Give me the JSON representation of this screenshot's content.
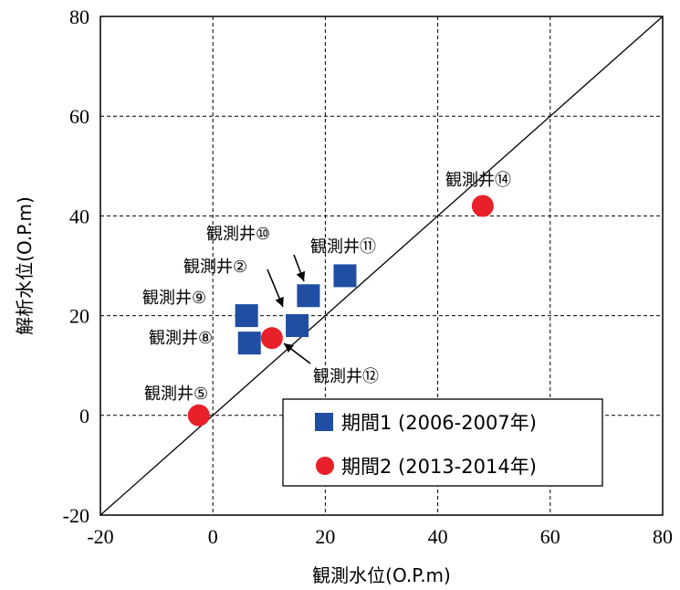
{
  "chart_data": {
    "type": "scatter",
    "xlabel": "観測水位(O.P.m)",
    "ylabel": "解析水位(O.P.m)",
    "xlim": [
      -20,
      80
    ],
    "ylim": [
      -20,
      80
    ],
    "xticks": [
      "-20",
      "0",
      "20",
      "40",
      "60",
      "80"
    ],
    "yticks": [
      "-20",
      "0",
      "20",
      "40",
      "60",
      "80"
    ],
    "grid": true,
    "reference_line": "y = x",
    "legend_placement": "bottom-right",
    "colors": {
      "series1": "#1f4ea3",
      "series2": "#e8202a"
    },
    "series": [
      {
        "name": "期間1 (2006-2007年)",
        "marker": "square",
        "points": [
          {
            "x": 6,
            "y": 20
          },
          {
            "x": 6.5,
            "y": 14.5
          },
          {
            "x": 15,
            "y": 18
          },
          {
            "x": 17,
            "y": 24
          },
          {
            "x": 23.5,
            "y": 28
          }
        ]
      },
      {
        "name": "期間2 (2013-2014年)",
        "marker": "circle",
        "points": [
          {
            "x": -2.5,
            "y": 0
          },
          {
            "x": 10.5,
            "y": 15.5
          },
          {
            "x": 48,
            "y": 42
          }
        ]
      }
    ],
    "annotations": [
      {
        "text": "観測井⑤",
        "x": -2.5,
        "y": 0
      },
      {
        "text": "観測井⑧",
        "x": 6.5,
        "y": 14.5
      },
      {
        "text": "観測井⑨",
        "x": 6,
        "y": 20
      },
      {
        "text": "観測井②",
        "x": 15,
        "y": 18
      },
      {
        "text": "観測井⑩",
        "x": 17,
        "y": 24
      },
      {
        "text": "観測井⑪",
        "x": 23.5,
        "y": 28
      },
      {
        "text": "観測井⑫",
        "x": 10.5,
        "y": 15.5
      },
      {
        "text": "観測井⑭",
        "x": 48,
        "y": 42
      }
    ]
  }
}
